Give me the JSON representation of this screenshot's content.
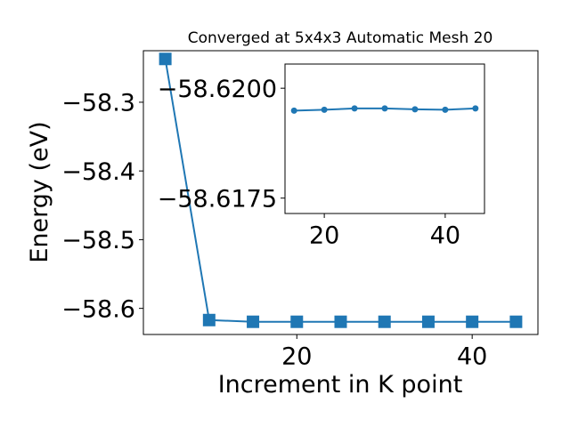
{
  "chart_data": [
    {
      "type": "line",
      "title": "Converged at 5x4x3 Automatic Mesh 20",
      "xlabel": "Increment in K point",
      "ylabel": "Energy (eV)",
      "x": [
        5,
        10,
        15,
        20,
        25,
        30,
        35,
        40,
        45
      ],
      "series": [
        {
          "values": [
            -58.237,
            -58.617,
            -58.6195,
            -58.6195,
            -58.6195,
            -58.6195,
            -58.6195,
            -58.6195,
            -58.6195
          ]
        }
      ],
      "xlim": [
        2.5,
        47.5
      ],
      "ylim": [
        -58.638,
        -58.225
      ],
      "xticks": [
        20,
        40
      ],
      "xtick_labels": [
        "20",
        "40"
      ],
      "yticks": [
        -58.3,
        -58.4,
        -58.5,
        -58.6
      ],
      "ytick_labels": [
        "−58.3",
        "−58.4",
        "−58.5",
        "−58.6"
      ],
      "marker": "square",
      "color": "#1f77b4",
      "grid": false
    },
    {
      "type": "line",
      "title": "",
      "xlabel": "",
      "ylabel": "",
      "x": [
        15,
        20,
        25,
        30,
        35,
        40,
        45
      ],
      "series": [
        {
          "values": [
            -58.61949,
            -58.61951,
            -58.61954,
            -58.61954,
            -58.61952,
            -58.61951,
            -58.61954
          ]
        }
      ],
      "xlim": [
        13.5,
        46.5
      ],
      "ylim": [
        -58.61715,
        -58.62055
      ],
      "xticks": [
        20,
        40
      ],
      "xtick_labels": [
        "20",
        "40"
      ],
      "yticks": [
        -58.62,
        -58.6175
      ],
      "ytick_labels": [
        "−58.6200",
        "−58.6175"
      ],
      "marker": "circle",
      "color": "#1f77b4",
      "grid": false
    }
  ]
}
